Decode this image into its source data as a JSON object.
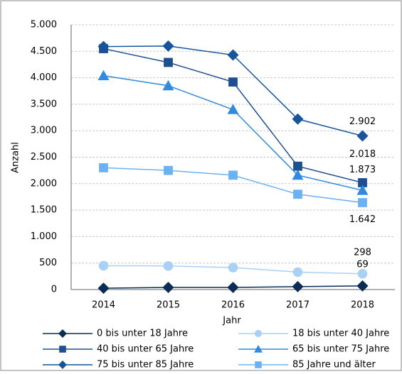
{
  "chart_data": {
    "type": "line",
    "x_label": "Jahr",
    "y_label": "Anzahl",
    "categories": [
      "2014",
      "2015",
      "2016",
      "2017",
      "2018"
    ],
    "ylim": [
      0,
      5000
    ],
    "yticks": [
      0,
      500,
      {
        "value": 1000,
        "label": "1.000"
      },
      {
        "value": 1500,
        "label": "1.500"
      },
      {
        "value": 2000,
        "label": "2.000"
      },
      {
        "value": 2500,
        "label": "2.500"
      },
      {
        "value": 3000,
        "label": "3.000"
      },
      {
        "value": 3500,
        "label": "3.500"
      },
      {
        "value": 4000,
        "label": "4.000"
      },
      {
        "value": 4500,
        "label": "4.500"
      },
      {
        "value": 5000,
        "label": "5.000"
      }
    ],
    "grid": true,
    "series": [
      {
        "name": "0 bis unter 18 Jahre",
        "color": "#0b2d55",
        "marker": "diamond",
        "values": [
          25,
          40,
          40,
          55,
          69
        ],
        "value_labels": [
          null,
          null,
          null,
          null,
          "69"
        ]
      },
      {
        "name": "18 bis unter 40 Jahre",
        "color": "#a9d1f5",
        "marker": "circle",
        "values": [
          450,
          445,
          415,
          330,
          298
        ],
        "value_labels": [
          null,
          null,
          null,
          null,
          "298"
        ]
      },
      {
        "name": "40 bis unter 65 Jahre",
        "color": "#1d4f91",
        "marker": "square",
        "values": [
          4550,
          4290,
          3920,
          2330,
          2018
        ],
        "value_labels": [
          null,
          null,
          null,
          null,
          "2.018"
        ]
      },
      {
        "name": "65 bis unter 75 Jahre",
        "color": "#2f8ae0",
        "marker": "triangle",
        "values": [
          4040,
          3850,
          3400,
          2160,
          1873
        ],
        "value_labels": [
          null,
          null,
          null,
          null,
          "1.873"
        ]
      },
      {
        "name": "75 bis unter 85 Jahre",
        "color": "#16549b",
        "marker": "diamond",
        "values": [
          4590,
          4600,
          4430,
          3220,
          2902
        ],
        "value_labels": [
          null,
          null,
          null,
          null,
          "2.902"
        ]
      },
      {
        "name": "85 Jahre und älter",
        "color": "#6db2f0",
        "marker": "square",
        "values": [
          2300,
          2250,
          2160,
          1800,
          1642
        ],
        "value_labels": [
          null,
          null,
          null,
          null,
          "1.642"
        ]
      }
    ]
  }
}
